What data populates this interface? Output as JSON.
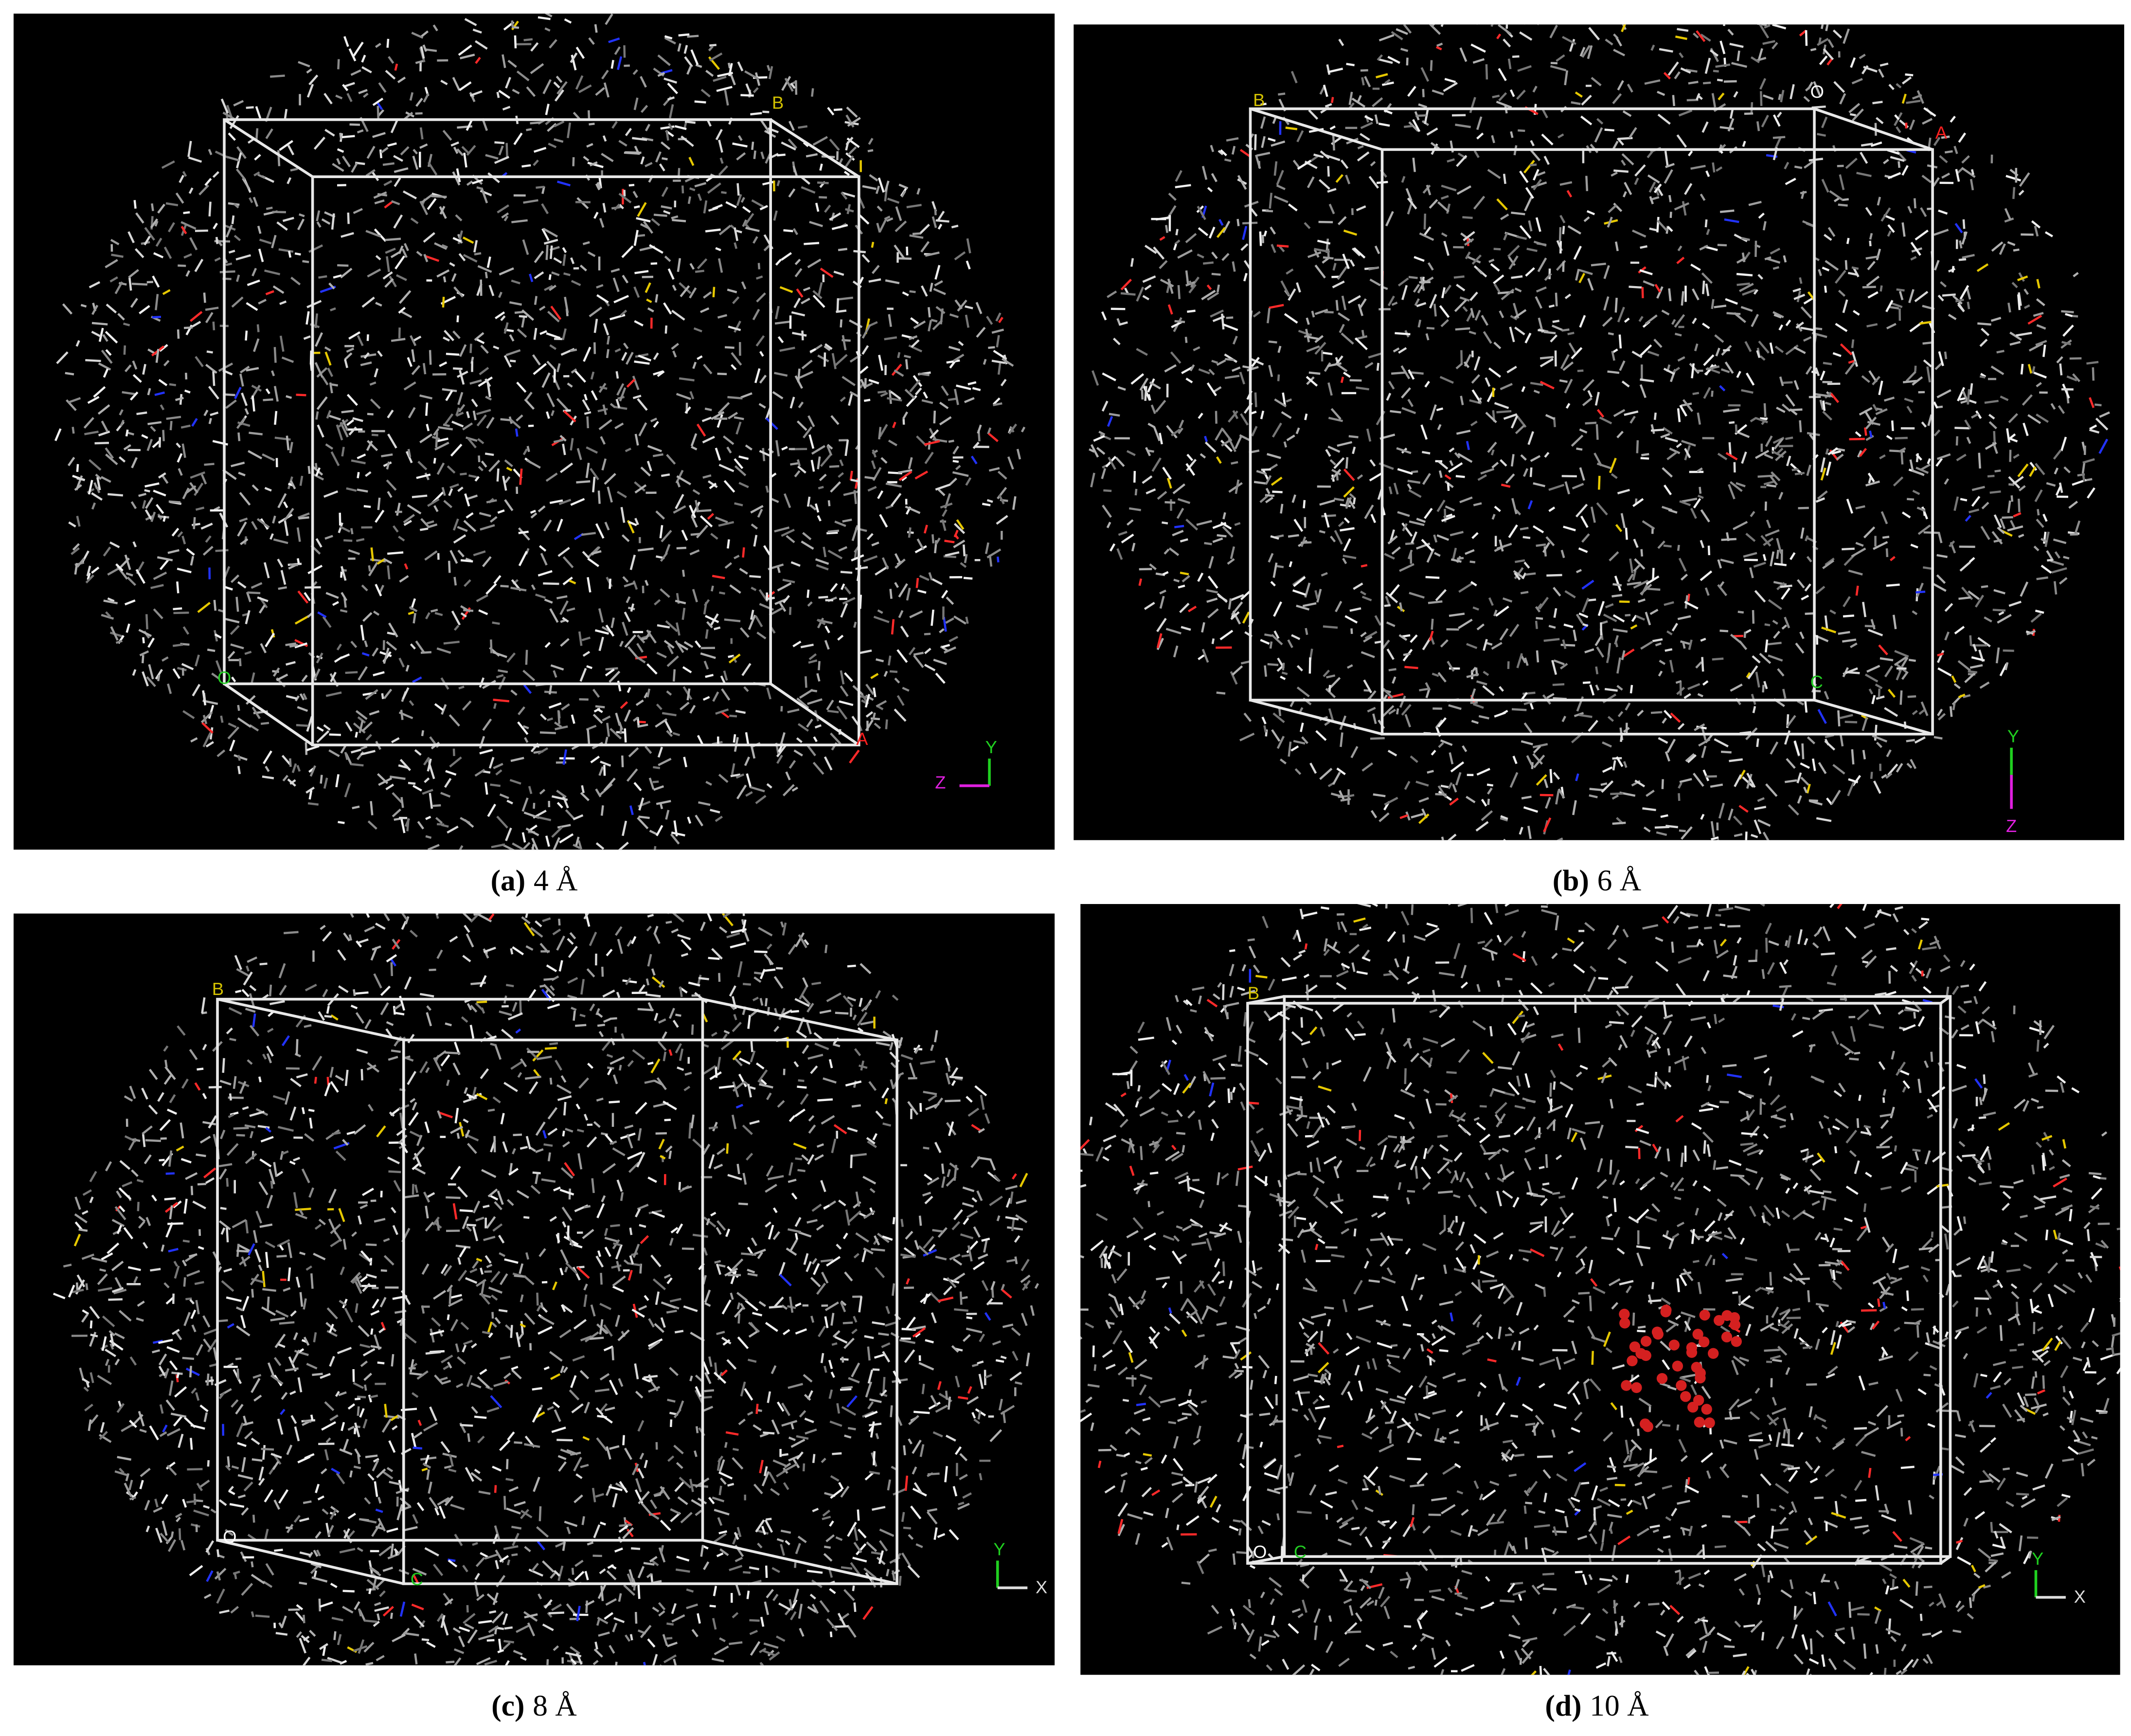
{
  "panels": [
    {
      "caption_label": "(a)",
      "caption_text": "4 Å",
      "box_labels": [
        "B",
        "O",
        "A"
      ],
      "axis_labels": [
        "Y",
        "Z"
      ]
    },
    {
      "caption_label": "(b)",
      "caption_text": "6 Å",
      "box_labels": [
        "B",
        "O",
        "A",
        "C"
      ],
      "axis_labels": [
        "Y",
        "Z"
      ]
    },
    {
      "caption_label": "(c)",
      "caption_text": "8 Å",
      "box_labels": [
        "B",
        "O",
        "C"
      ],
      "axis_labels": [
        "Y",
        "X"
      ]
    },
    {
      "caption_label": "(d)",
      "caption_text": "10 Å",
      "box_labels": [
        "B",
        "O",
        "C"
      ],
      "axis_labels": [
        "Y",
        "X"
      ]
    }
  ]
}
